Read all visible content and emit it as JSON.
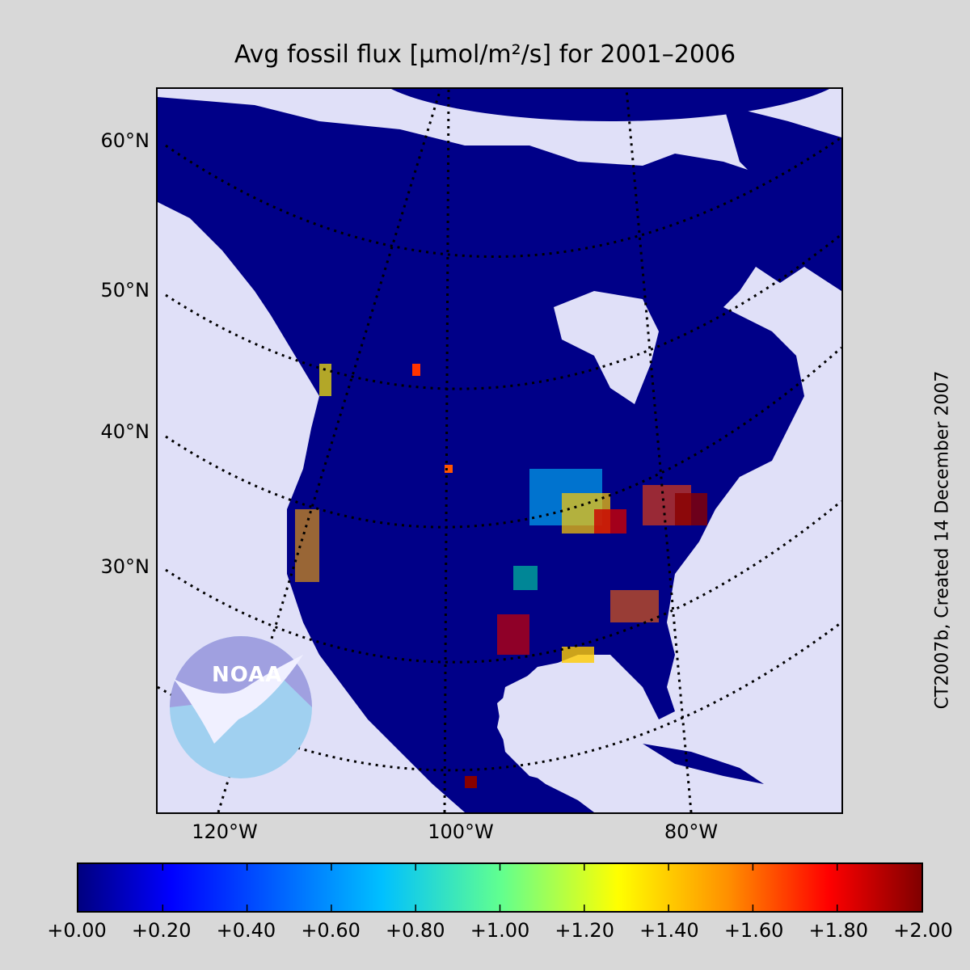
{
  "title": "Avg fossil flux [µmol/m²/s] for 2001–2006",
  "credit": "CT2007b, Created 14 December 2007",
  "logo_text": "NOAA",
  "lat_labels": [
    "60°N",
    "50°N",
    "40°N",
    "30°N"
  ],
  "lon_labels": [
    "120°W",
    "100°W",
    "80°W"
  ],
  "colorbar": {
    "min": 0.0,
    "max": 2.0,
    "colormap": "jet",
    "ticks": [
      "+0.00",
      "+0.20",
      "+0.40",
      "+0.60",
      "+0.80",
      "+1.00",
      "+1.20",
      "+1.40",
      "+1.60",
      "+1.80",
      "+2.00"
    ]
  },
  "colors": {
    "ocean": "#e0e0f8",
    "background": "#d8d8d8",
    "land_low": "#000088"
  }
}
